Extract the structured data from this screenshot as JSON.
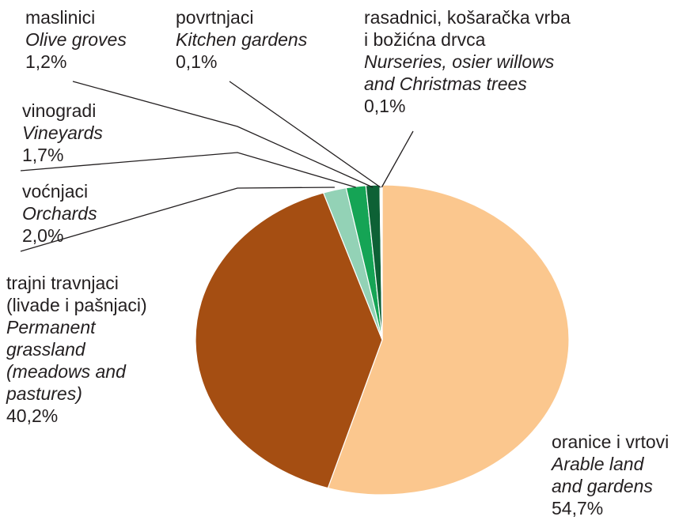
{
  "chart_data": {
    "type": "pie",
    "start_angle_deg": 0,
    "direction": "clockwise",
    "slices": [
      {
        "hr": "oranice i vrtovi",
        "en": "Arable land and gardens",
        "value": 54.7,
        "label": "54,7%",
        "color": "#fbc78e"
      },
      {
        "hr": "trajni travnjaci (livade i pašnjaci)",
        "en": "Permanent grassland (meadows and pastures)",
        "value": 40.2,
        "label": "40,2%",
        "color": "#a54e12"
      },
      {
        "hr": "voćnjaci",
        "en": "Orchards",
        "value": 2.0,
        "label": "2,0%",
        "color": "#93d2b6"
      },
      {
        "hr": "vinogradi",
        "en": "Vineyards",
        "value": 1.7,
        "label": "1,7%",
        "color": "#15a455"
      },
      {
        "hr": "maslinici",
        "en": "Olive groves",
        "value": 1.2,
        "label": "1,2%",
        "color": "#0d6135"
      },
      {
        "hr": "povrtnjaci",
        "en": "Kitchen gardens",
        "value": 0.1,
        "label": "0,1%",
        "color": "#bfe6d2"
      },
      {
        "hr": "rasadnici, košaračka vrba i božićna drvca",
        "en": "Nurseries, osier willows and Christmas trees",
        "value": 0.1,
        "label": "0,1%",
        "color": "#e8f5ee"
      }
    ]
  },
  "labels": {
    "arable": {
      "hr": [
        "oranice i vrtovi"
      ],
      "en": [
        "Arable land",
        "and gardens"
      ],
      "pct": "54,7%"
    },
    "grassland": {
      "hr": [
        "trajni travnjaci",
        "(livade i pašnjaci)"
      ],
      "en": [
        "Permanent",
        "grassland",
        "(meadows and",
        "pastures)"
      ],
      "pct": "40,2%"
    },
    "orchards": {
      "hr": [
        "voćnjaci"
      ],
      "en": [
        "Orchards"
      ],
      "pct": "2,0%"
    },
    "vineyards": {
      "hr": [
        "vinogradi"
      ],
      "en": [
        "Vineyards"
      ],
      "pct": "1,7%"
    },
    "olive": {
      "hr": [
        "maslinici"
      ],
      "en": [
        "Olive groves"
      ],
      "pct": "1,2%"
    },
    "kitchen": {
      "hr": [
        "povrtnjaci"
      ],
      "en": [
        "Kitchen gardens"
      ],
      "pct": "0,1%"
    },
    "nurseries": {
      "hr": [
        "rasadnici, košaračka vrba",
        "i božićna drvca"
      ],
      "en": [
        "Nurseries, osier willows",
        "and Christmas trees"
      ],
      "pct": "0,1%"
    }
  }
}
